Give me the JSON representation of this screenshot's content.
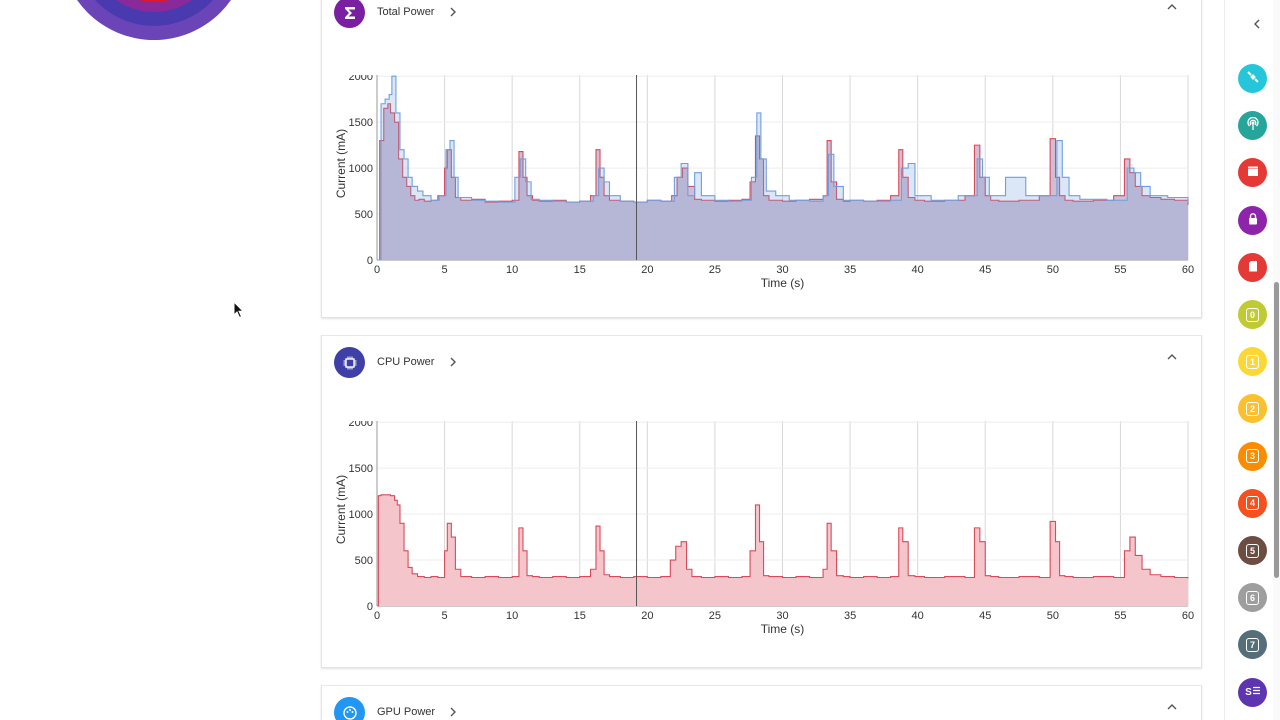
{
  "colors": {
    "total_icon": "#7b1fa2",
    "cpu_icon": "#3f3fa8",
    "gpu_icon": "#2196f3",
    "cpu_fill": "#f4c6cb",
    "cpu_line": "#d94a5a",
    "total_fill": "#cbbcd3",
    "total_blue": "#6f9fe0"
  },
  "sections": {
    "total": {
      "title": "Total Power",
      "icon": "sigma-icon"
    },
    "cpu": {
      "title": "CPU Power",
      "icon": "cpu-chip-icon"
    },
    "gpu": {
      "title": "GPU Power",
      "icon": "gpu-palette-icon"
    }
  },
  "right_sidebar": {
    "items": [
      {
        "name": "satellite",
        "icon": "satellite-icon",
        "color": "#26c6da",
        "label": ""
      },
      {
        "name": "antenna",
        "icon": "antenna-icon",
        "color": "#26a69a",
        "label": ""
      },
      {
        "name": "display",
        "icon": "clapper-icon",
        "color": "#e53935",
        "label": ""
      },
      {
        "name": "security",
        "icon": "lock-icon",
        "color": "#8e24aa",
        "label": ""
      },
      {
        "name": "memory",
        "icon": "sd-card-icon",
        "color": "#e53935",
        "label": ""
      },
      {
        "name": "core-0",
        "icon": "core-icon",
        "color": "#c0ca33",
        "label": "0"
      },
      {
        "name": "core-1",
        "icon": "core-icon",
        "color": "#fdd835",
        "label": "1"
      },
      {
        "name": "core-2",
        "icon": "core-icon",
        "color": "#fbc02d",
        "label": "2"
      },
      {
        "name": "core-3",
        "icon": "core-icon",
        "color": "#fb8c00",
        "label": "3"
      },
      {
        "name": "core-4",
        "icon": "core-icon",
        "color": "#f4511e",
        "label": "4"
      },
      {
        "name": "core-5",
        "icon": "core-icon",
        "color": "#6d4c41",
        "label": "5"
      },
      {
        "name": "core-6",
        "icon": "core-icon",
        "color": "#9e9e9e",
        "label": "6"
      },
      {
        "name": "core-7",
        "icon": "core-icon",
        "color": "#546e7a",
        "label": "7"
      },
      {
        "name": "system",
        "icon": "list-icon",
        "color": "#5e35b1",
        "label": "S"
      }
    ]
  },
  "chart_data": [
    {
      "id": "total",
      "type": "area",
      "title": "Total Power",
      "xlabel": "Time (s)",
      "ylabel": "Current (mA)",
      "xlim": [
        0,
        60
      ],
      "ylim": [
        0,
        2100
      ],
      "xticks": [
        0,
        5,
        10,
        15,
        20,
        25,
        30,
        35,
        40,
        45,
        50,
        55,
        60
      ],
      "yticks": [
        0,
        500,
        1000,
        1500,
        2000
      ],
      "cursor_x": 19.2,
      "series": [
        {
          "name": "total-red",
          "x": [
            0,
            0.2,
            0.5,
            0.8,
            1.0,
            1.3,
            1.6,
            1.9,
            2.2,
            2.5,
            2.8,
            3.1,
            3.5,
            4.0,
            4.5,
            5.0,
            5.2,
            5.5,
            5.8,
            6.2,
            7.0,
            8.0,
            9.0,
            10.0,
            10.5,
            10.8,
            11.1,
            11.5,
            12.0,
            13.0,
            14.0,
            15.0,
            15.8,
            16.2,
            16.5,
            16.8,
            17.2,
            18.0,
            19.0,
            20.0,
            21.0,
            21.8,
            22.2,
            22.6,
            23.0,
            23.5,
            24.0,
            25.0,
            26.0,
            27.0,
            27.6,
            28.0,
            28.3,
            28.6,
            29.0,
            30.0,
            31.0,
            32.0,
            33.0,
            33.3,
            33.6,
            34.0,
            34.5,
            35.0,
            36.0,
            37.0,
            38.0,
            38.6,
            38.9,
            39.3,
            39.8,
            40.5,
            42.0,
            43.5,
            44.2,
            44.6,
            45.0,
            45.4,
            46.0,
            47.5,
            49.0,
            49.8,
            50.2,
            50.5,
            50.9,
            51.5,
            53.0,
            54.5,
            55.3,
            55.7,
            56.1,
            56.6,
            57.2,
            58.0,
            59.0,
            60.0
          ],
          "y": [
            0,
            1300,
            1650,
            1700,
            1600,
            1500,
            1100,
            900,
            800,
            700,
            650,
            660,
            640,
            650,
            700,
            1000,
            1200,
            900,
            680,
            650,
            660,
            630,
            640,
            650,
            1180,
            900,
            700,
            650,
            640,
            650,
            630,
            640,
            700,
            1200,
            900,
            700,
            650,
            640,
            630,
            650,
            640,
            700,
            900,
            1000,
            800,
            660,
            650,
            640,
            650,
            660,
            850,
            1350,
            1100,
            700,
            650,
            640,
            650,
            660,
            700,
            1300,
            850,
            660,
            640,
            650,
            640,
            650,
            700,
            1200,
            900,
            680,
            650,
            640,
            650,
            700,
            1250,
            900,
            700,
            650,
            640,
            650,
            700,
            1320,
            900,
            700,
            650,
            640,
            650,
            700,
            1100,
            950,
            800,
            700,
            680,
            660,
            650,
            600
          ]
        },
        {
          "name": "total-blue",
          "x": [
            0,
            0.3,
            0.6,
            0.9,
            1.1,
            1.4,
            1.7,
            2.0,
            2.3,
            2.6,
            3.0,
            3.4,
            4.0,
            4.6,
            5.1,
            5.4,
            5.7,
            6.0,
            7.0,
            8.0,
            9.0,
            10.2,
            10.6,
            11.0,
            11.4,
            12.0,
            13.0,
            14.0,
            15.0,
            16.0,
            16.4,
            16.8,
            17.2,
            18.0,
            19.0,
            20.0,
            21.0,
            22.0,
            22.5,
            23.0,
            23.5,
            24.0,
            25.0,
            26.0,
            27.0,
            27.7,
            28.1,
            28.4,
            28.8,
            29.5,
            30.5,
            32.0,
            33.0,
            33.4,
            33.8,
            34.5,
            36.0,
            38.0,
            38.8,
            39.3,
            39.8,
            41.0,
            43.0,
            44.4,
            44.8,
            45.3,
            46.5,
            48.0,
            49.5,
            50.3,
            50.7,
            51.2,
            52.0,
            54.0,
            55.5,
            56.0,
            56.5,
            57.2,
            58.5,
            60.0
          ],
          "y": [
            0,
            1700,
            1750,
            1800,
            2000,
            1600,
            1200,
            1100,
            900,
            800,
            750,
            700,
            650,
            700,
            1200,
            1300,
            900,
            680,
            650,
            640,
            630,
            900,
            1100,
            850,
            660,
            650,
            640,
            630,
            640,
            700,
            1000,
            850,
            700,
            640,
            630,
            650,
            640,
            900,
            1050,
            700,
            950,
            700,
            650,
            640,
            650,
            900,
            1600,
            1100,
            750,
            700,
            650,
            640,
            700,
            1150,
            800,
            650,
            640,
            650,
            1000,
            1050,
            700,
            650,
            700,
            1100,
            900,
            700,
            900,
            700,
            700,
            1300,
            900,
            700,
            660,
            650,
            1000,
            950,
            800,
            700,
            680,
            620
          ]
        }
      ]
    },
    {
      "id": "cpu",
      "type": "area",
      "title": "CPU Power",
      "xlabel": "Time (s)",
      "ylabel": "Current (mA)",
      "xlim": [
        0,
        60
      ],
      "ylim": [
        0,
        2100
      ],
      "xticks": [
        0,
        5,
        10,
        15,
        20,
        25,
        30,
        35,
        40,
        45,
        50,
        55,
        60
      ],
      "yticks": [
        0,
        500,
        1000,
        1500,
        2000
      ],
      "cursor_x": 19.2,
      "series": [
        {
          "name": "cpu",
          "x": [
            0,
            0.1,
            0.3,
            1.0,
            1.3,
            1.5,
            1.7,
            2.0,
            2.3,
            2.6,
            3.0,
            3.5,
            4.0,
            4.5,
            5.0,
            5.2,
            5.5,
            5.8,
            6.2,
            7.0,
            8.0,
            9.0,
            10.0,
            10.5,
            10.8,
            11.1,
            11.5,
            12.0,
            13.0,
            14.0,
            15.0,
            15.8,
            16.2,
            16.5,
            16.8,
            17.2,
            18.0,
            19.0,
            20.0,
            21.0,
            21.7,
            22.1,
            22.5,
            22.9,
            23.3,
            24.0,
            25.0,
            26.0,
            27.0,
            27.6,
            28.0,
            28.3,
            28.6,
            29.0,
            30.0,
            31.0,
            32.0,
            33.0,
            33.3,
            33.6,
            34.0,
            34.5,
            35.0,
            36.0,
            37.0,
            38.0,
            38.6,
            38.9,
            39.3,
            39.8,
            40.5,
            42.0,
            43.5,
            44.2,
            44.6,
            45.0,
            45.4,
            46.0,
            47.5,
            49.0,
            49.8,
            50.2,
            50.5,
            50.9,
            51.5,
            53.0,
            54.5,
            55.3,
            55.7,
            56.1,
            56.6,
            57.2,
            58.0,
            59.0,
            60.0
          ],
          "y": [
            0,
            1200,
            1210,
            1200,
            1150,
            1100,
            900,
            600,
            420,
            350,
            320,
            310,
            320,
            310,
            600,
            900,
            750,
            400,
            320,
            310,
            320,
            310,
            320,
            850,
            600,
            330,
            320,
            310,
            320,
            310,
            320,
            400,
            870,
            600,
            340,
            320,
            310,
            320,
            310,
            320,
            500,
            650,
            700,
            400,
            320,
            310,
            320,
            310,
            320,
            600,
            1100,
            700,
            330,
            320,
            310,
            320,
            310,
            400,
            900,
            600,
            330,
            320,
            310,
            320,
            310,
            320,
            850,
            700,
            330,
            320,
            310,
            320,
            310,
            850,
            700,
            330,
            320,
            310,
            320,
            310,
            920,
            700,
            330,
            320,
            310,
            320,
            310,
            600,
            750,
            550,
            400,
            340,
            320,
            310,
            300
          ]
        }
      ]
    }
  ]
}
